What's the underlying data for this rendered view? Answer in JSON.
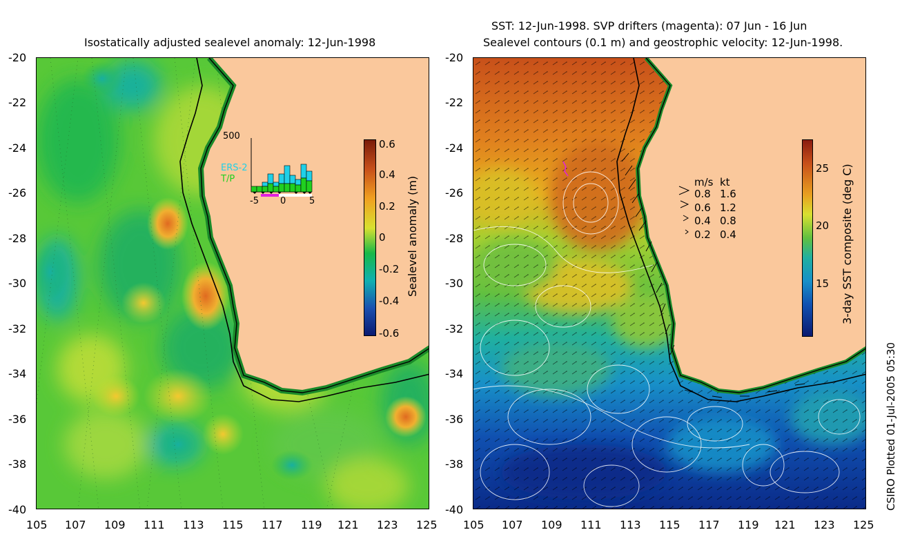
{
  "left_panel": {
    "title": "Isostatically adjusted sealevel anomaly: 12-Jun-1998",
    "y_ticks": [
      "-20",
      "-22",
      "-24",
      "-26",
      "-28",
      "-30",
      "-32",
      "-34",
      "-36",
      "-38",
      "-40"
    ],
    "x_ticks": [
      "105",
      "107",
      "109",
      "111",
      "113",
      "115",
      "117",
      "119",
      "121",
      "123",
      "125"
    ],
    "colorbar": {
      "label": "Sealevel anomaly (m)",
      "ticks": [
        "0.6",
        "0.4",
        "0.2",
        "0",
        "-0.2",
        "-0.4",
        "-0.6"
      ],
      "colors": [
        "#7a1c0a",
        "#c8501a",
        "#f0a020",
        "#d8e030",
        "#18b848",
        "#10b0b0",
        "#1a50b0",
        "#0a1a70"
      ]
    },
    "inset": {
      "ymax": "500",
      "series": [
        "ERS-2",
        "T/P"
      ],
      "xticks": [
        "-5",
        "0",
        "5"
      ],
      "colors": {
        "ers2": "#20d0e8",
        "tp": "#20d020",
        "drifter": "#e020e0"
      }
    }
  },
  "right_panel": {
    "title_line1": "SST: 12-Jun-1998. SVP drifters (magenta): 07 Jun - 16 Jun",
    "title_line2": "Sealevel contours (0.1 m) and geostrophic velocity: 12-Jun-1998.",
    "y_ticks": [
      "-20",
      "-22",
      "-24",
      "-26",
      "-28",
      "-30",
      "-32",
      "-34",
      "-36",
      "-38",
      "-40"
    ],
    "x_ticks": [
      "105",
      "107",
      "109",
      "111",
      "113",
      "115",
      "117",
      "119",
      "121",
      "123",
      "125"
    ],
    "legend": {
      "header_ms": "m/s",
      "header_kt": "kt",
      "rows": [
        {
          "ms": "0.8",
          "kt": "1.6"
        },
        {
          "ms": "0.6",
          "kt": "1.2"
        },
        {
          "ms": "0.4",
          "kt": "0.8"
        },
        {
          "ms": "0.2",
          "kt": "0.4"
        }
      ]
    },
    "colorbar": {
      "label": "3-day SST composite (deg C)",
      "ticks": [
        "25",
        "20",
        "15"
      ]
    }
  },
  "credit": "CSIRO Plotted 01-Jul-2005 05:30",
  "land_color": "#fac89c"
}
